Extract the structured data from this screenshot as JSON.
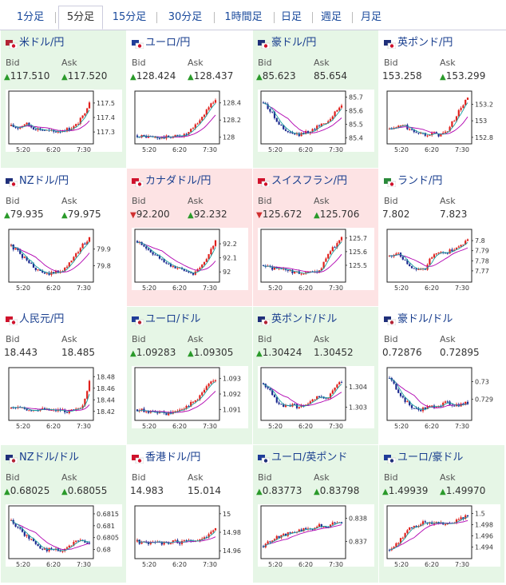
{
  "tabs": [
    {
      "label": "1分足",
      "active": false
    },
    {
      "label": "5分足",
      "active": true
    },
    {
      "label": "15分足",
      "active": false
    },
    {
      "label": "30分足",
      "active": false
    },
    {
      "label": "1時間足",
      "active": false
    },
    {
      "label": "日足",
      "active": false
    },
    {
      "label": "週足",
      "active": false
    },
    {
      "label": "月足",
      "active": false
    }
  ],
  "labels": {
    "bid": "Bid",
    "ask": "Ask"
  },
  "colors": {
    "up": "#2a9a2a",
    "down": "#d03030",
    "candle_up": "#e0201c",
    "candle_down": "#1c2a90",
    "ma_a": "#b000b0",
    "ma_b": "#1aa0a0",
    "title": "#1a3f8f"
  },
  "pairs": [
    {
      "name": "米ドル/円",
      "flag": "us-jp",
      "bg": "green",
      "bid": "117.510",
      "bid_dir": "up",
      "ask": "117.520",
      "ask_dir": "up",
      "chart_data": {
        "type": "candlestick",
        "y_ticks": [
          "117.5",
          "117.4",
          "117.3"
        ],
        "ylim": [
          117.24,
          117.56
        ],
        "x_ticks": [
          "5:20",
          "6:20",
          "7:30"
        ],
        "trend": [
          117.34,
          117.33,
          117.36,
          117.33,
          117.32,
          117.31,
          117.3,
          117.31,
          117.32,
          117.34,
          117.4,
          117.51
        ]
      }
    },
    {
      "name": "ユーロ/円",
      "flag": "eu-jp",
      "bg": "white",
      "bid": "128.424",
      "bid_dir": "up",
      "ask": "128.437",
      "ask_dir": "up",
      "chart_data": {
        "type": "candlestick",
        "y_ticks": [
          "128.4",
          "128.2",
          "128"
        ],
        "ylim": [
          127.96,
          128.5
        ],
        "x_ticks": [
          "5:20",
          "6:20",
          "7:30"
        ],
        "trend": [
          128.02,
          128.01,
          128.0,
          127.99,
          128.0,
          128.01,
          128.02,
          128.03,
          128.12,
          128.22,
          128.35,
          128.44
        ]
      }
    },
    {
      "name": "豪ドル/円",
      "flag": "au-jp",
      "bg": "green",
      "bid": "85.623",
      "bid_dir": "up",
      "ask": "85.654",
      "ask_dir": "none",
      "chart_data": {
        "type": "candlestick",
        "y_ticks": [
          "85.7",
          "85.6",
          "85.5",
          "85.4"
        ],
        "ylim": [
          85.38,
          85.72
        ],
        "x_ticks": [
          "5:20",
          "6:20",
          "7:30"
        ],
        "trend": [
          85.66,
          85.6,
          85.52,
          85.45,
          85.43,
          85.42,
          85.44,
          85.46,
          85.5,
          85.52,
          85.58,
          85.64
        ]
      }
    },
    {
      "name": "英ポンド/円",
      "flag": "gb-jp",
      "bg": "white",
      "bid": "153.258",
      "bid_dir": "none",
      "ask": "153.299",
      "ask_dir": "up",
      "chart_data": {
        "type": "candlestick",
        "y_ticks": [
          "153.2",
          "153",
          "152.8"
        ],
        "ylim": [
          152.76,
          153.32
        ],
        "x_ticks": [
          "5:20",
          "6:20",
          "7:30"
        ],
        "trend": [
          152.9,
          152.92,
          152.95,
          152.88,
          152.86,
          152.84,
          152.85,
          152.83,
          152.86,
          153.0,
          153.15,
          153.28
        ]
      }
    },
    {
      "name": "NZドル/円",
      "flag": "nz-jp",
      "bg": "white",
      "bid": "79.935",
      "bid_dir": "up",
      "ask": "79.975",
      "ask_dir": "up",
      "chart_data": {
        "type": "candlestick",
        "y_ticks": [
          "79.9",
          "79.8"
        ],
        "ylim": [
          79.72,
          80.0
        ],
        "x_ticks": [
          "5:20",
          "6:20",
          "7:30"
        ],
        "trend": [
          79.92,
          79.88,
          79.84,
          79.8,
          79.76,
          79.75,
          79.76,
          79.77,
          79.8,
          79.86,
          79.92,
          79.97
        ]
      }
    },
    {
      "name": "カナダドル/円",
      "flag": "ca-jp",
      "bg": "red",
      "bid": "92.200",
      "bid_dir": "down",
      "ask": "92.232",
      "ask_dir": "up",
      "chart_data": {
        "type": "candlestick",
        "y_ticks": [
          "92.2",
          "92.1",
          "92"
        ],
        "ylim": [
          91.95,
          92.28
        ],
        "x_ticks": [
          "5:20",
          "6:20",
          "7:30"
        ],
        "trend": [
          92.22,
          92.18,
          92.14,
          92.1,
          92.06,
          92.04,
          92.02,
          92.0,
          91.99,
          92.04,
          92.12,
          92.22
        ]
      }
    },
    {
      "name": "スイスフラン/円",
      "flag": "ch-jp",
      "bg": "red",
      "bid": "125.672",
      "bid_dir": "down",
      "ask": "125.706",
      "ask_dir": "up",
      "chart_data": {
        "type": "candlestick",
        "y_ticks": [
          "125.7",
          "125.6",
          "125.5"
        ],
        "ylim": [
          125.4,
          125.74
        ],
        "x_ticks": [
          "5:20",
          "6:20",
          "7:30"
        ],
        "trend": [
          125.5,
          125.48,
          125.47,
          125.46,
          125.45,
          125.44,
          125.45,
          125.44,
          125.46,
          125.58,
          125.64,
          125.7
        ]
      }
    },
    {
      "name": "ランド/円",
      "flag": "za-jp",
      "bg": "white",
      "bid": "7.802",
      "bid_dir": "none",
      "ask": "7.823",
      "ask_dir": "none",
      "chart_data": {
        "type": "candlestick",
        "y_ticks": [
          "7.8",
          "7.79",
          "7.78",
          "7.77"
        ],
        "ylim": [
          7.762,
          7.808
        ],
        "x_ticks": [
          "5:20",
          "6:20",
          "7:30"
        ],
        "trend": [
          7.785,
          7.788,
          7.782,
          7.775,
          7.77,
          7.772,
          7.785,
          7.79,
          7.788,
          7.792,
          7.795,
          7.8
        ]
      }
    },
    {
      "name": "人民元/円",
      "flag": "cn-jp",
      "bg": "white",
      "bid": "18.443",
      "bid_dir": "none",
      "ask": "18.485",
      "ask_dir": "none",
      "chart_data": {
        "type": "candlestick",
        "y_ticks": [
          "18.48",
          "18.46",
          "18.44",
          "18.42"
        ],
        "ylim": [
          18.41,
          18.49
        ],
        "x_ticks": [
          "5:20",
          "6:20",
          "7:30"
        ],
        "trend": [
          18.425,
          18.426,
          18.424,
          18.423,
          18.424,
          18.422,
          18.421,
          18.422,
          18.42,
          18.421,
          18.43,
          18.47
        ]
      }
    },
    {
      "name": "ユーロ/ドル",
      "flag": "eu-us",
      "bg": "green",
      "bid": "1.09283",
      "bid_dir": "up",
      "ask": "1.09305",
      "ask_dir": "up",
      "chart_data": {
        "type": "candlestick",
        "y_ticks": [
          "1.093",
          "1.092",
          "1.091"
        ],
        "ylim": [
          1.0905,
          1.0935
        ],
        "x_ticks": [
          "5:20",
          "6:20",
          "7:30"
        ],
        "trend": [
          1.091,
          1.0909,
          1.0908,
          1.0908,
          1.0907,
          1.0908,
          1.091,
          1.0912,
          1.0915,
          1.092,
          1.0926,
          1.093
        ]
      }
    },
    {
      "name": "英ポンド/ドル",
      "flag": "gb-us",
      "bg": "green",
      "bid": "1.30424",
      "bid_dir": "up",
      "ask": "1.30452",
      "ask_dir": "none",
      "chart_data": {
        "type": "candlestick",
        "y_ticks": [
          "1.304",
          "1.303"
        ],
        "ylim": [
          1.3025,
          1.3048
        ],
        "x_ticks": [
          "5:20",
          "6:20",
          "7:30"
        ],
        "trend": [
          1.3042,
          1.3038,
          1.3032,
          1.303,
          1.3031,
          1.303,
          1.3032,
          1.3033,
          1.3036,
          1.3034,
          1.304,
          1.3043
        ]
      }
    },
    {
      "name": "豪ドル/ドル",
      "flag": "au-us",
      "bg": "white",
      "bid": "0.72876",
      "bid_dir": "none",
      "ask": "0.72895",
      "ask_dir": "none",
      "chart_data": {
        "type": "candlestick",
        "y_ticks": [
          "0.73",
          "0.729"
        ],
        "ylim": [
          0.728,
          0.7306
        ],
        "x_ticks": [
          "5:20",
          "6:20",
          "7:30"
        ],
        "trend": [
          0.7302,
          0.7296,
          0.729,
          0.7286,
          0.7284,
          0.7285,
          0.7286,
          0.7287,
          0.7288,
          0.7287,
          0.7287,
          0.7288
        ]
      }
    },
    {
      "name": "NZドル/ドル",
      "flag": "nz-us",
      "bg": "green",
      "bid": "0.68025",
      "bid_dir": "up",
      "ask": "0.68055",
      "ask_dir": "up",
      "chart_data": {
        "type": "candlestick",
        "y_ticks": [
          "0.6815",
          "0.681",
          "0.6805",
          "0.68"
        ],
        "ylim": [
          0.67975,
          0.6817
        ],
        "x_ticks": [
          "5:20",
          "6:20",
          "7:30"
        ],
        "trend": [
          0.6812,
          0.6809,
          0.6806,
          0.6804,
          0.6801,
          0.68,
          0.68,
          0.6799,
          0.6801,
          0.6803,
          0.6804,
          0.6803
        ]
      }
    },
    {
      "name": "香港ドル/円",
      "flag": "hk-jp",
      "bg": "white",
      "bid": "14.983",
      "bid_dir": "none",
      "ask": "15.014",
      "ask_dir": "none",
      "chart_data": {
        "type": "candlestick",
        "y_ticks": [
          "15",
          "14.98",
          "14.96"
        ],
        "ylim": [
          14.955,
          15.005
        ],
        "x_ticks": [
          "5:20",
          "6:20",
          "7:30"
        ],
        "trend": [
          14.97,
          14.968,
          14.97,
          14.969,
          14.968,
          14.97,
          14.969,
          14.97,
          14.971,
          14.972,
          14.976,
          14.985
        ]
      }
    },
    {
      "name": "ユーロ/英ポンド",
      "flag": "eu-gb",
      "bg": "green",
      "bid": "0.83773",
      "bid_dir": "up",
      "ask": "0.83798",
      "ask_dir": "up",
      "chart_data": {
        "type": "candlestick",
        "y_ticks": [
          "0.838",
          "0.837"
        ],
        "ylim": [
          0.8364,
          0.8384
        ],
        "x_ticks": [
          "5:20",
          "6:20",
          "7:30"
        ],
        "trend": [
          0.8368,
          0.837,
          0.8372,
          0.8373,
          0.8374,
          0.8375,
          0.8375,
          0.8376,
          0.8377,
          0.8376,
          0.8378,
          0.8378
        ]
      }
    },
    {
      "name": "ユーロ/豪ドル",
      "flag": "eu-au",
      "bg": "green",
      "bid": "1.49939",
      "bid_dir": "up",
      "ask": "1.49970",
      "ask_dir": "up",
      "chart_data": {
        "type": "candlestick",
        "y_ticks": [
          "1.5",
          "1.498",
          "1.496",
          "1.494"
        ],
        "ylim": [
          1.4925,
          1.5008
        ],
        "x_ticks": [
          "5:20",
          "6:20",
          "7:30"
        ],
        "trend": [
          1.4935,
          1.4945,
          1.496,
          1.4975,
          1.498,
          1.4985,
          1.4982,
          1.4984,
          1.498,
          1.4985,
          1.499,
          1.4995
        ]
      }
    }
  ]
}
